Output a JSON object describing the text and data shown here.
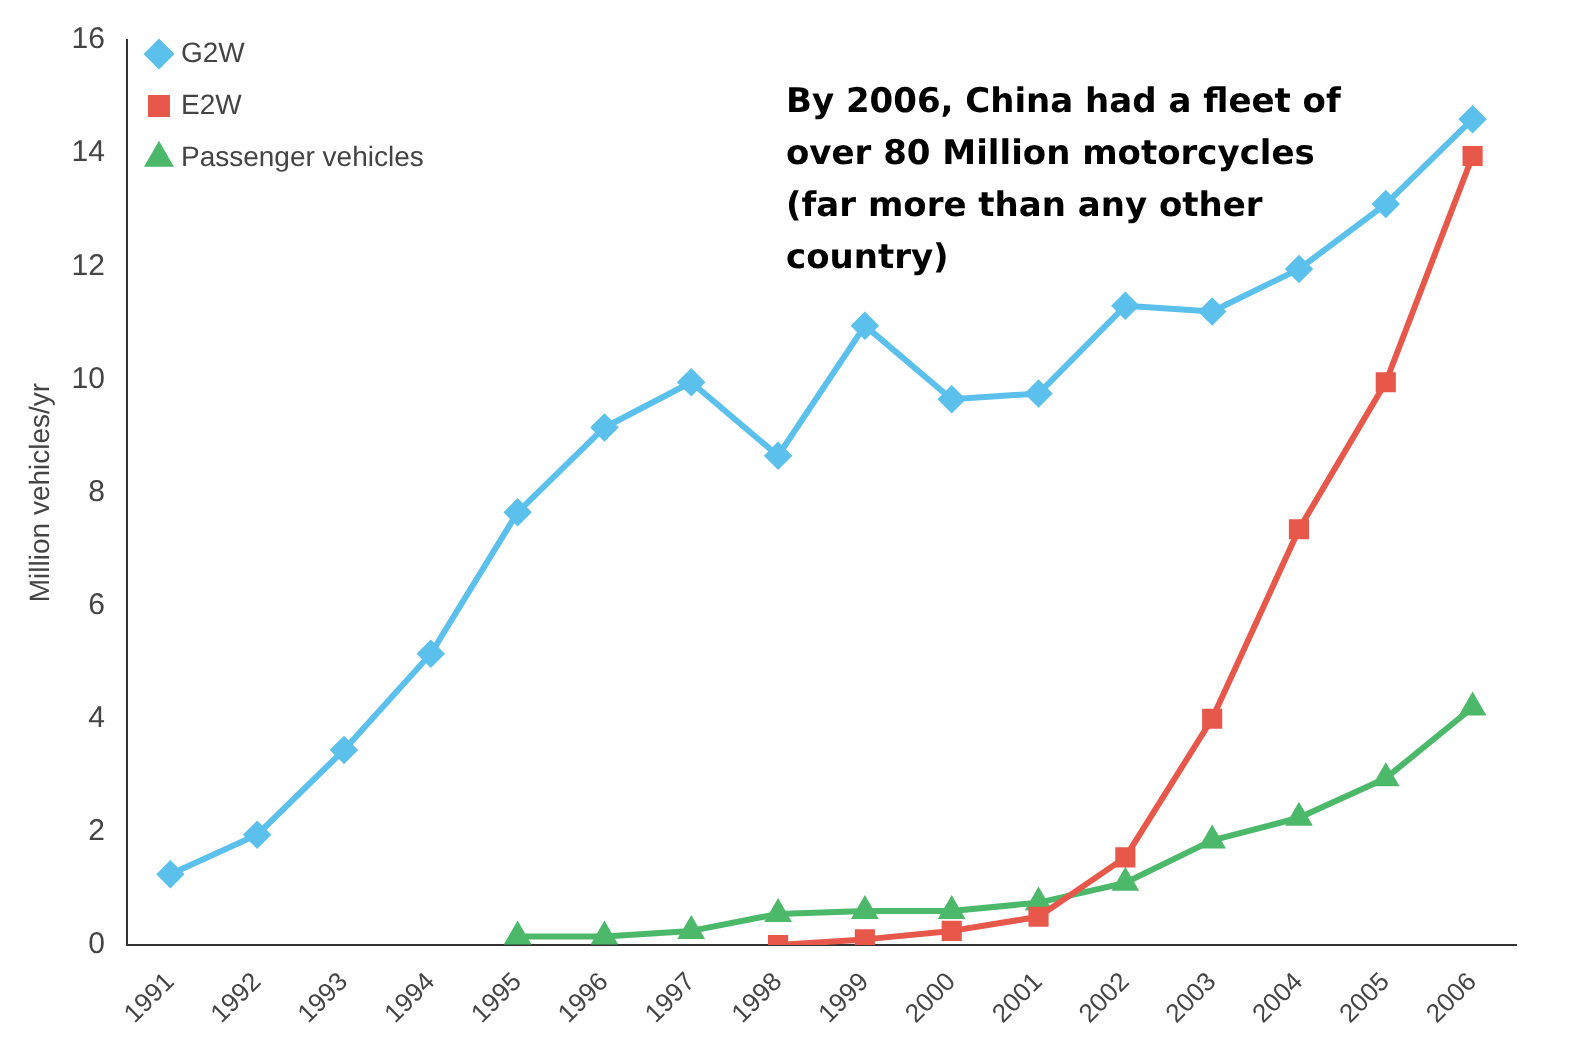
{
  "chart_data": {
    "type": "line",
    "categories": [
      "1991",
      "1992",
      "1993",
      "1994",
      "1995",
      "1996",
      "1997",
      "1998",
      "1999",
      "2000",
      "2001",
      "2002",
      "2003",
      "2004",
      "2005",
      "2006"
    ],
    "series": [
      {
        "name": "G2W",
        "color": "#5bc0eb",
        "marker": "diamond",
        "values": [
          1.25,
          1.95,
          3.45,
          5.15,
          7.65,
          9.15,
          9.95,
          8.65,
          10.95,
          9.65,
          9.75,
          11.3,
          11.2,
          11.95,
          13.1,
          14.6
        ]
      },
      {
        "name": "E2W",
        "color": "#e8584a",
        "marker": "square",
        "values": [
          null,
          null,
          null,
          null,
          null,
          null,
          null,
          0.0,
          0.1,
          0.25,
          0.5,
          1.55,
          4.0,
          7.35,
          9.95,
          13.95
        ]
      },
      {
        "name": "Passenger vehicles",
        "color": "#4cb86a",
        "marker": "triangle",
        "values": [
          null,
          null,
          null,
          null,
          0.15,
          0.15,
          0.25,
          0.55,
          0.6,
          0.6,
          0.75,
          1.1,
          1.85,
          2.25,
          2.95,
          4.2
        ]
      }
    ],
    "ylabel": "Million vehicles/yr",
    "ylim": [
      0,
      16
    ],
    "yticks": [
      0,
      2,
      4,
      6,
      8,
      10,
      12,
      14,
      16
    ],
    "annotations": [
      "By 2006, China had a fleet of over 80 Million motorcycles (far more than any other country)"
    ],
    "legend": "top left",
    "grid": false,
    "line_style": "solid"
  }
}
